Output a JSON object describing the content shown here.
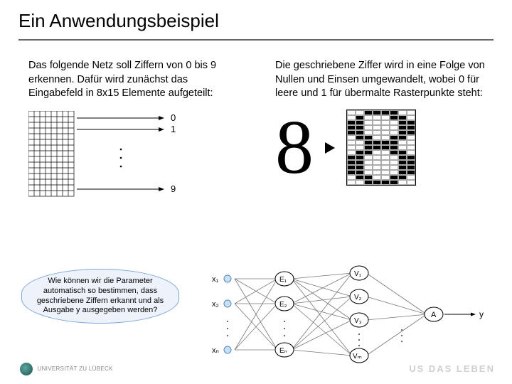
{
  "title": "Ein Anwendungsbeispiel",
  "left_text": "Das folgende Netz soll Ziffern von 0 bis 9 erkennen. Dafür wird zunächst das Eingabefeld in 8x15 Elemente aufgeteilt:",
  "right_text": "Die geschriebene Ziffer wird in eine Folge von Nullen und Einsen umgewandelt, wobei 0 für leere und 1 für übermalte Rasterpunkte steht:",
  "callout_text": "Wie können wir die Parameter automatisch so bestimmen, dass geschriebene Ziffern erkannt und als Ausgabe y ausgegeben werden?",
  "leftdiag": {
    "out0": "0",
    "out1": "1",
    "out9": "9"
  },
  "digit_display": "8",
  "pixel8": [
    "00111100",
    "01000110",
    "11000011",
    "11000011",
    "11000011",
    "01100110",
    "00111100",
    "00111100",
    "01100110",
    "11000011",
    "11000011",
    "11000011",
    "11000011",
    "01100110",
    "00111100"
  ],
  "network": {
    "inputs": [
      "x₁",
      "x₂",
      "xₙ"
    ],
    "layerE": [
      "E₁",
      "E₂",
      "Eₙ"
    ],
    "layerV": [
      "V₁",
      "V₂",
      "V₃",
      "Vₘ"
    ],
    "out_node": "A",
    "out_label": "y"
  },
  "uni_name": "UNIVERSITÄT ZU LÜBECK",
  "motto": "US DAS LEBEN",
  "colors": {
    "divider": "#666666",
    "callout_bg": "#eef3fb",
    "callout_border": "#7fa5d6",
    "motto_color": "#cdd0d2",
    "logo_green": "#2f6d66"
  }
}
